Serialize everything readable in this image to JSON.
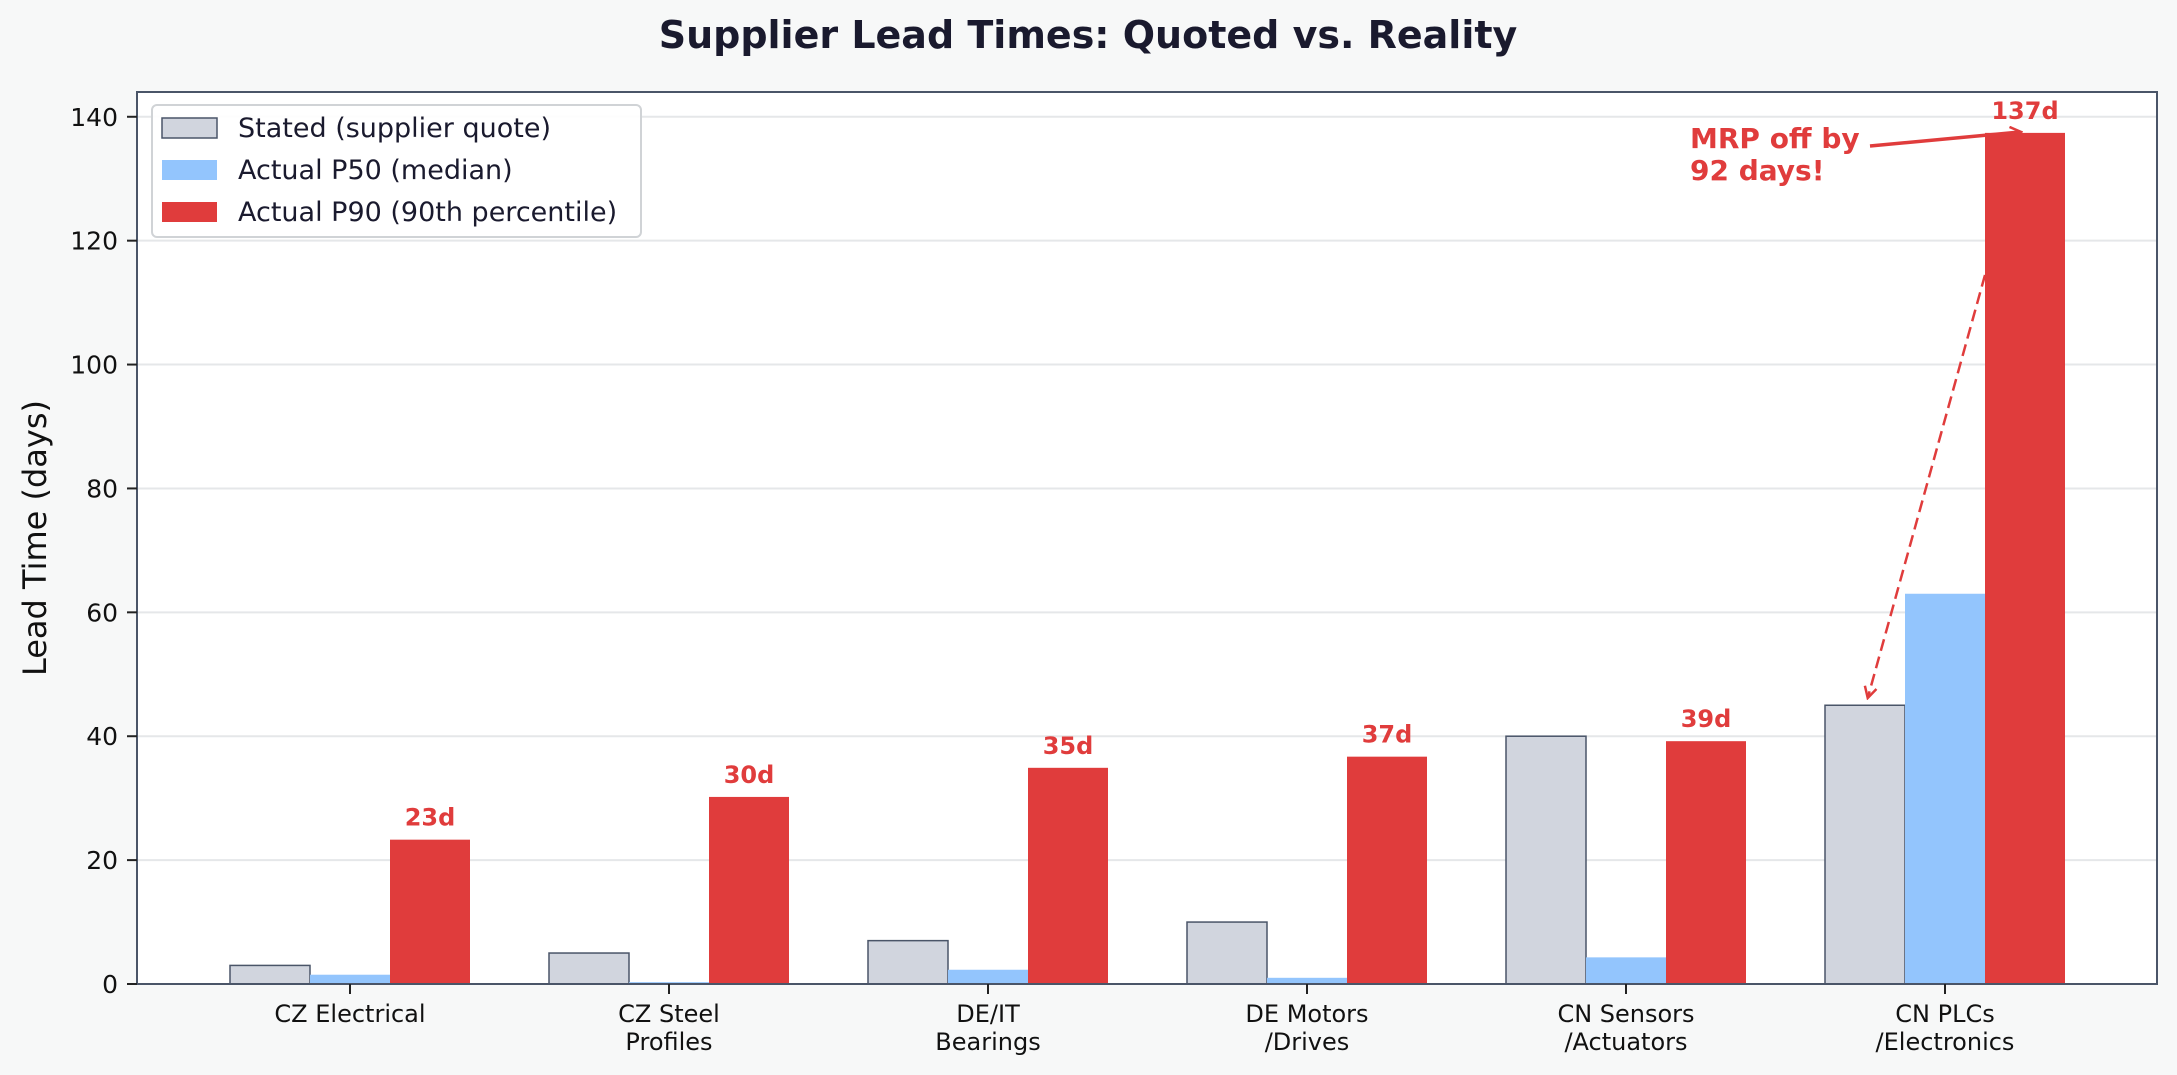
{
  "chart_data": {
    "type": "bar",
    "title": "Supplier Lead Times: Quoted vs. Reality",
    "xlabel": "",
    "ylabel": "Lead Time (days)",
    "ylim": [
      0,
      144
    ],
    "yticks": [
      0,
      20,
      40,
      60,
      80,
      100,
      120,
      140
    ],
    "grid": true,
    "legend_position": "upper left",
    "categories": [
      "CZ Electrical",
      "CZ Steel\nProfiles",
      "DE/IT\nBearings",
      "DE Motors\n/Drives",
      "CN Sensors\n/Actuators",
      "CN PLCs\n/Electronics"
    ],
    "series": [
      {
        "name": "Stated (supplier quote)",
        "color": "#d1d5de",
        "edge": "#4a5568",
        "values": [
          3,
          5,
          7,
          10,
          40,
          45
        ]
      },
      {
        "name": "Actual P50 (median)",
        "color": "#93c5fd",
        "values": [
          1.5,
          0.3,
          2.3,
          1,
          4.3,
          63
        ]
      },
      {
        "name": "Actual P90 (90th percentile)",
        "color": "#e03c3c",
        "values": [
          23.3,
          30.2,
          34.9,
          36.7,
          39.2,
          137.4
        ]
      }
    ],
    "value_labels": [
      "23d",
      "30d",
      "35d",
      "37d",
      "39d",
      "137d"
    ],
    "annotations": [
      {
        "text": "MRP off by\n92 days!",
        "target_category": "CN PLCs\n/Electronics",
        "color": "#e03c3c"
      }
    ]
  }
}
